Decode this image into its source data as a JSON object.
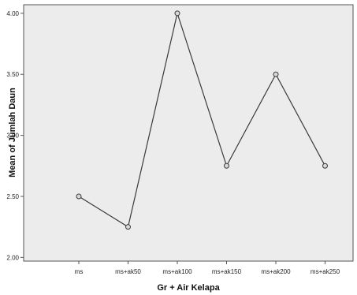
{
  "chart_data": {
    "type": "line",
    "xlabel": "Gr + Air Kelapa",
    "ylabel": "Mean of Jumlah Daun",
    "categories": [
      "ms",
      "ms+ak50",
      "ms+ak100",
      "ms+ak150",
      "ms+ak200",
      "ms+ak250"
    ],
    "series": [
      {
        "values": [
          2.5,
          2.25,
          4.0,
          2.75,
          3.5,
          2.75
        ]
      }
    ],
    "ylim": [
      1.97,
      4.07
    ],
    "yticks": [
      2.0,
      2.5,
      3.0,
      3.5,
      4.0
    ],
    "ytick_labels": [
      "2.00",
      "2.50",
      "3.00",
      "3.50",
      "4.00"
    ],
    "grid": false,
    "markers": "open-circle",
    "colors": {
      "plot_background": "#ececec",
      "line": "#3a3a3a",
      "marker_fill": "#d8d8d8"
    }
  }
}
